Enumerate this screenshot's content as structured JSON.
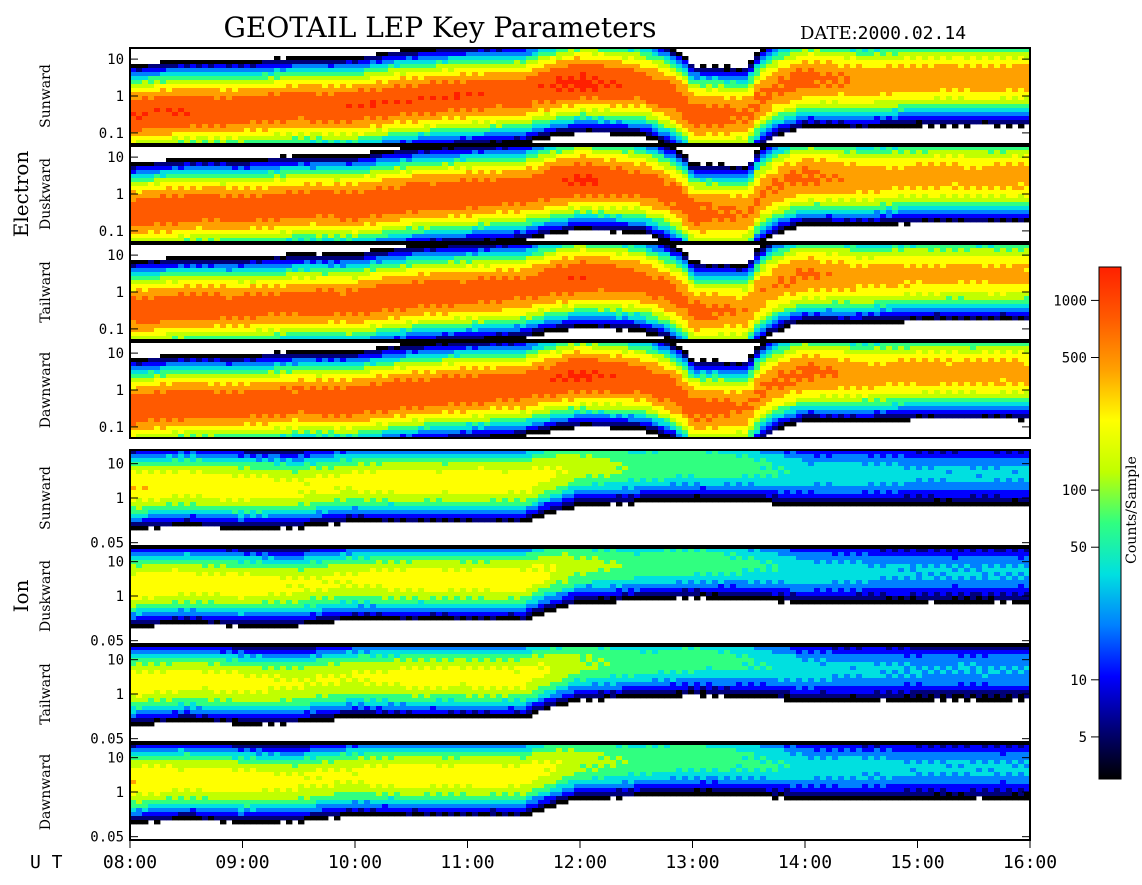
{
  "header": {
    "title": "GEOTAIL LEP Key Parameters",
    "date_label": "DATE:",
    "date_value": "2000.02.14"
  },
  "groups": {
    "electron": "Electron",
    "ion": "Ion"
  },
  "panels": {
    "electron": [
      "Sunward",
      "Duskward",
      "Tailward",
      "Dawnward"
    ],
    "ion": [
      "Sunward",
      "Duskward",
      "Tailward",
      "Dawnward"
    ]
  },
  "y_ticks": {
    "electron": [
      "10",
      "1",
      "0.1"
    ],
    "ion": [
      "10",
      "1",
      "0.05"
    ]
  },
  "colorbar": {
    "label": "Counts/Sample",
    "ticks": [
      "1000",
      "500",
      "100",
      "50",
      "10",
      "5"
    ]
  },
  "colors": {
    "scale": [
      "#000000",
      "#00007a",
      "#0000ff",
      "#0080ff",
      "#00e0e0",
      "#30ff80",
      "#c0ff00",
      "#ffff00",
      "#ffa000",
      "#ff5a00",
      "#ff2000"
    ],
    "frame": "#000000",
    "background": "#ffffff"
  },
  "chart_data": {
    "type": "heatmap",
    "title": "GEOTAIL LEP Key Parameters",
    "x_axis_label": "U T",
    "x_ticks": [
      "08:00",
      "09:00",
      "10:00",
      "11:00",
      "12:00",
      "13:00",
      "14:00",
      "15:00",
      "16:00"
    ],
    "x_range_hours": [
      8,
      16
    ],
    "colorbar_range": [
      3,
      1500
    ],
    "colorbar_scale": "log",
    "electron_ylim": [
      0.05,
      20
    ],
    "ion_ylim": [
      0.04,
      25
    ],
    "y_scale": "log",
    "intensity_profile": {
      "hours": [
        8.0,
        8.5,
        9.0,
        9.5,
        10.0,
        10.5,
        11.0,
        11.5,
        12.0,
        12.5,
        13.0,
        13.5,
        14.0,
        14.5,
        15.0,
        15.5,
        16.0
      ],
      "electron_peak_energy": [
        0.3,
        0.4,
        0.4,
        0.5,
        0.5,
        0.8,
        1.0,
        1.2,
        2.5,
        2.0,
        0.3,
        0.3,
        3.0,
        2.5,
        3.0,
        3.0,
        3.0
      ],
      "electron_peak_counts": [
        1000,
        1000,
        900,
        900,
        1000,
        1000,
        1000,
        900,
        1200,
        900,
        800,
        600,
        700,
        500,
        450,
        450,
        450
      ],
      "ion_peak_energy": [
        2.0,
        2.5,
        2.0,
        2.0,
        3.0,
        3.0,
        3.0,
        3.0,
        8.0,
        8.0,
        10.0,
        8.0,
        5.0,
        5.0,
        5.0,
        5.0,
        5.0
      ],
      "ion_peak_counts": [
        300,
        250,
        250,
        200,
        200,
        250,
        250,
        250,
        120,
        80,
        80,
        60,
        40,
        35,
        30,
        30,
        30
      ]
    }
  }
}
